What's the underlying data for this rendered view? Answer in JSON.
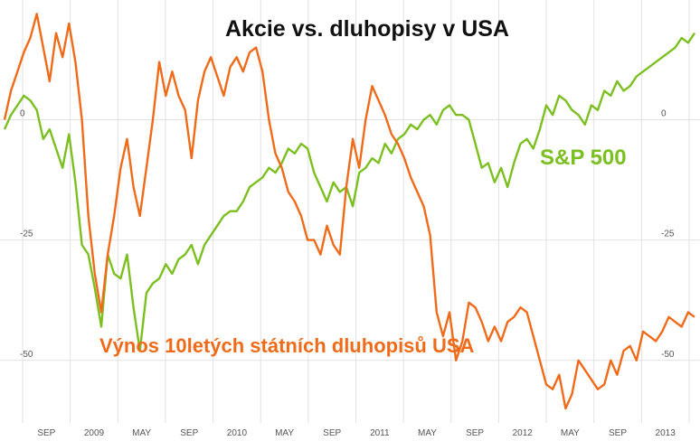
{
  "chart_data": {
    "type": "line",
    "title": "Akcie vs. dluhopisy v USA",
    "xlabel": "",
    "ylabel": "",
    "ylim": [
      -63,
      23
    ],
    "y_ticks": [
      0,
      -25,
      -50
    ],
    "y_tick_labels": [
      "0",
      "-25",
      "-50"
    ],
    "x_tick_labels": [
      "SEP",
      "2009",
      "MAY",
      "SEP",
      "2010",
      "MAY",
      "SEP",
      "2011",
      "MAY",
      "SEP",
      "2012",
      "MAY",
      "SEP",
      "2013"
    ],
    "grid": true,
    "colors": {
      "sp500": "#7cbf21",
      "yield": "#ef6b1a"
    },
    "series": [
      {
        "name": "S&P 500",
        "values": [
          -2,
          1,
          3,
          5,
          4,
          2,
          -4,
          -2,
          -6,
          -10,
          -3,
          -13,
          -26,
          -28,
          -35,
          -43,
          -28,
          -32,
          -33,
          -28,
          -39,
          -48,
          -36,
          -34,
          -33,
          -30,
          -32,
          -29,
          -28,
          -26,
          -30,
          -26,
          -24,
          -22,
          -20,
          -19,
          -19,
          -17,
          -14,
          -13,
          -12,
          -10,
          -11,
          -9,
          -6,
          -7,
          -5,
          -6,
          -11,
          -14,
          -17,
          -13,
          -15,
          -14,
          -18,
          -11,
          -10,
          -8,
          -9,
          -5,
          -7,
          -4,
          -3,
          -1,
          -2,
          0,
          1,
          -1,
          2,
          3,
          1,
          1,
          0,
          -5,
          -10,
          -9,
          -13,
          -10,
          -14,
          -9,
          -5,
          -4,
          -6,
          -2,
          3,
          1,
          5,
          4,
          2,
          1,
          -1,
          3,
          2,
          6,
          5,
          8,
          6,
          7,
          9,
          10,
          11,
          12,
          13,
          14,
          15,
          17,
          16,
          18
        ]
      },
      {
        "name": "Výnos 10letých státních dluhopisů USA",
        "values": [
          0,
          6,
          10,
          14,
          17,
          22,
          15,
          8,
          18,
          13,
          20,
          12,
          0,
          -20,
          -32,
          -40,
          -28,
          -20,
          -10,
          -4,
          -14,
          -20,
          -10,
          0,
          12,
          5,
          10,
          5,
          2,
          -8,
          4,
          10,
          13,
          9,
          5,
          11,
          13,
          10,
          14,
          15,
          10,
          0,
          -7,
          -10,
          -15,
          -17,
          -20,
          -25,
          -25,
          -28,
          -22,
          -26,
          -28,
          -14,
          -4,
          -10,
          0,
          7,
          4,
          1,
          -3,
          -5,
          -8,
          -12,
          -15,
          -18,
          -24,
          -40,
          -45,
          -40,
          -50,
          -46,
          -38,
          -39,
          -42,
          -46,
          -43,
          -46,
          -42,
          -41,
          -39,
          -40,
          -45,
          -50,
          -55,
          -56,
          -53,
          -60,
          -57,
          -50,
          -52,
          -54,
          -56,
          -55,
          -50,
          -53,
          -48,
          -47,
          -50,
          -44,
          -45,
          -46,
          -44,
          -41,
          -42,
          -43,
          -40,
          -41
        ]
      }
    ]
  }
}
